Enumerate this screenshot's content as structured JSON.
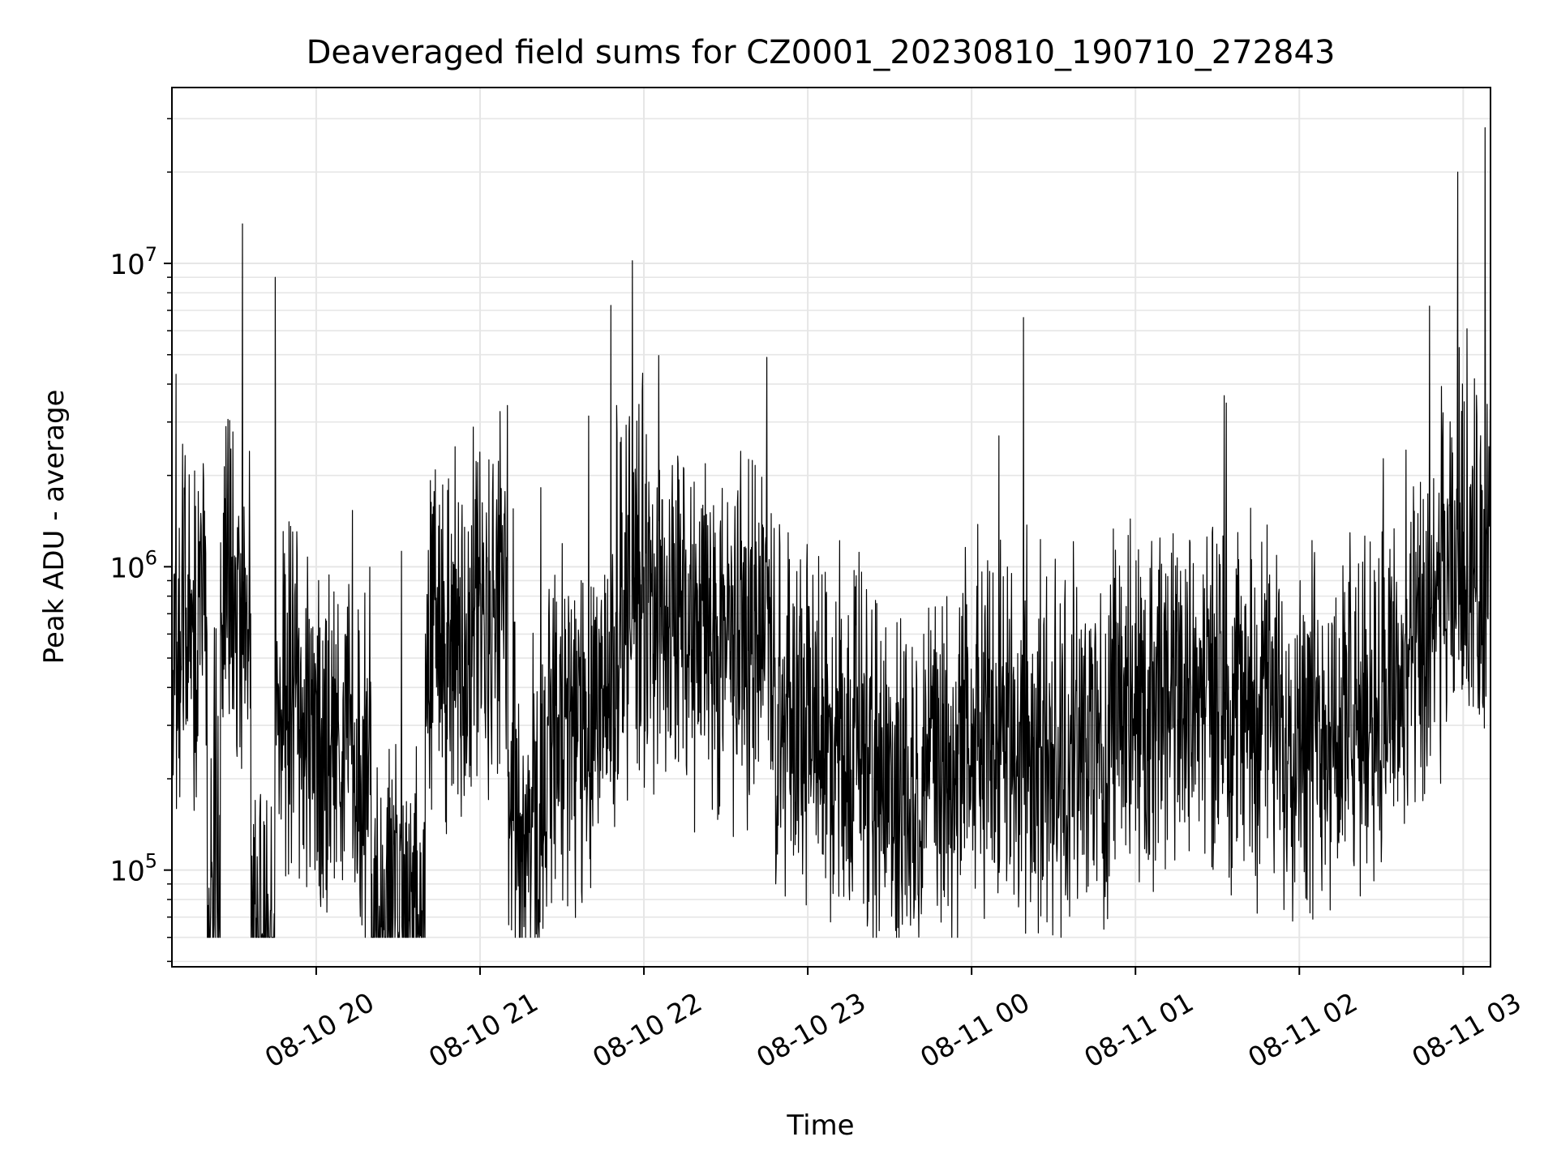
{
  "chart_data": {
    "type": "line",
    "title": "Deaveraged field sums for CZ0001_20230810_190710_272843",
    "xlabel": "Time",
    "ylabel": "Peak ADU - average",
    "yscale": "log",
    "ylim": [
      48000,
      38000000
    ],
    "xlim": [
      "2023-08-10 19:07:10",
      "2023-08-11 03:10:00"
    ],
    "grid": true,
    "legend": "none",
    "x_ticks": [
      "08-10 20",
      "08-10 21",
      "08-10 22",
      "08-10 23",
      "08-11 00",
      "08-11 01",
      "08-11 02",
      "08-11 03"
    ],
    "y_ticks": [
      {
        "base": "10",
        "exp": "5",
        "value": 100000
      },
      {
        "base": "10",
        "exp": "6",
        "value": 1000000
      },
      {
        "base": "10",
        "exp": "7",
        "value": 10000000
      }
    ],
    "series": [
      {
        "color": "#000000",
        "x": [
          "2023-08-10 19:07:10",
          "2023-08-10 19:15:00",
          "2023-08-10 19:20:00",
          "2023-08-10 19:22:00",
          "2023-08-10 19:25:00",
          "2023-08-10 19:30:00",
          "2023-08-10 19:33:00",
          "2023-08-10 19:36:00",
          "2023-08-10 19:40:00",
          "2023-08-10 19:45:00",
          "2023-08-10 19:55:00",
          "2023-08-10 20:05:00",
          "2023-08-10 20:20:00",
          "2023-08-10 20:29:00",
          "2023-08-10 20:40:00",
          "2023-08-10 20:55:00",
          "2023-08-10 21:05:00",
          "2023-08-10 21:10:00",
          "2023-08-10 21:15:00",
          "2023-08-10 21:25:00",
          "2023-08-10 21:40:00",
          "2023-08-10 21:50:00",
          "2023-08-10 22:03:00",
          "2023-08-10 22:15:00",
          "2023-08-10 22:30:00",
          "2023-08-10 22:45:00",
          "2023-08-10 22:48:00",
          "2023-08-10 23:00:00",
          "2023-08-10 23:20:00",
          "2023-08-10 23:40:00",
          "2023-08-10 23:55:00",
          "2023-08-11 00:10:00",
          "2023-08-11 00:12:00",
          "2023-08-11 00:30:00",
          "2023-08-11 00:50:00",
          "2023-08-11 01:10:00",
          "2023-08-11 01:30:00",
          "2023-08-11 01:50:00",
          "2023-08-11 02:10:00",
          "2023-08-11 02:25:00",
          "2023-08-11 02:40:00",
          "2023-08-11 02:50:00",
          "2023-08-11 02:58:00",
          "2023-08-11 03:00:00",
          "2023-08-11 03:04:00",
          "2023-08-11 03:08:00",
          "2023-08-11 03:10:00"
        ],
        "y": [
          600000,
          900000,
          600000,
          90000,
          1200000,
          800000,
          13500000,
          700000,
          60000,
          9000000,
          400000,
          250000,
          350000,
          70000,
          600000,
          700000,
          900000,
          3400000,
          150000,
          300000,
          380000,
          3400000,
          800000,
          700000,
          600000,
          4900000,
          500000,
          350000,
          300000,
          200000,
          300000,
          2700000,
          400000,
          250000,
          350000,
          400000,
          380000,
          350000,
          300000,
          400000,
          500000,
          800000,
          20000000,
          1300000,
          1000000,
          28000000,
          1200000
        ]
      }
    ]
  }
}
